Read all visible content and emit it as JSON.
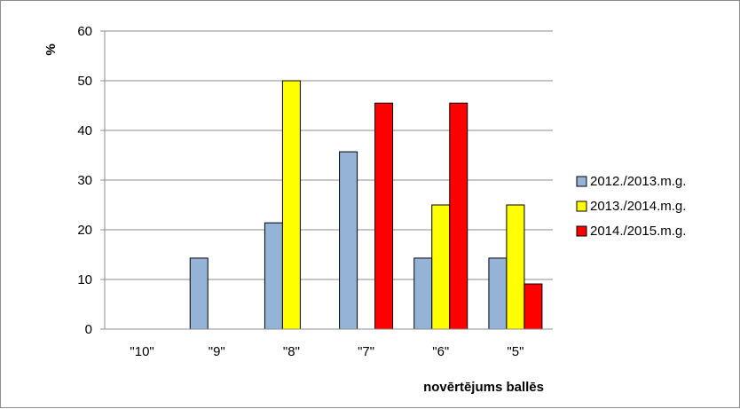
{
  "chart_data": {
    "type": "bar",
    "categories": [
      "\"10\"",
      "\"9\"",
      "\"8\"",
      "\"7\"",
      "\"6\"",
      "\"5\""
    ],
    "series": [
      {
        "name": "2012./2013.m.g.",
        "color": "#95B3D7",
        "values": [
          0,
          14.3,
          21.4,
          35.7,
          14.3,
          14.3
        ]
      },
      {
        "name": "2013./2014.m.g.",
        "color": "#FFFF00",
        "values": [
          0,
          0,
          50,
          0,
          25,
          25
        ]
      },
      {
        "name": "2014./2015.m.g.",
        "color": "#FF0000",
        "values": [
          0,
          0,
          0,
          45.5,
          45.5,
          9.1
        ]
      }
    ],
    "xlabel": "novērtējums ballēs",
    "ylabel": "%",
    "ylim": [
      0,
      60
    ],
    "yticks": [
      0,
      10,
      20,
      30,
      40,
      50,
      60
    ],
    "grid": true,
    "legend_position": "right"
  }
}
